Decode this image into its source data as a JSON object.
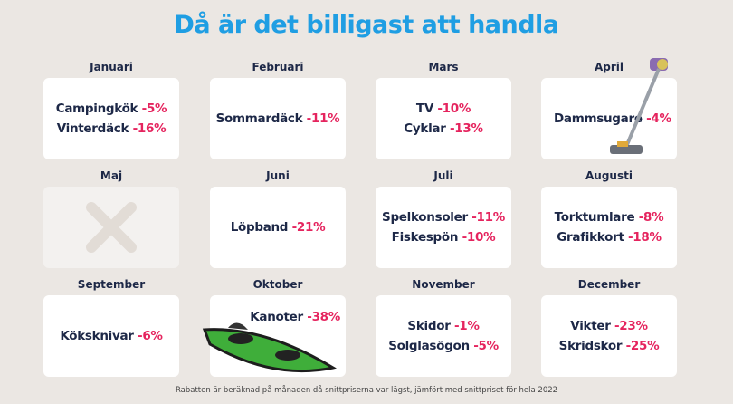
{
  "title": "Då är det billigast att handla",
  "months": [
    {
      "name": "Januari",
      "items": [
        {
          "product": "Campingkök",
          "discount": "-5%"
        },
        {
          "product": "Vinterdäck",
          "discount": "-16%"
        }
      ]
    },
    {
      "name": "Februari",
      "items": [
        {
          "product": "Sommardäck",
          "discount": "-11%"
        }
      ]
    },
    {
      "name": "Mars",
      "items": [
        {
          "product": "TV",
          "discount": "-10%"
        },
        {
          "product": "Cyklar",
          "discount": "-13%"
        }
      ]
    },
    {
      "name": "April",
      "items": [
        {
          "product": "Dammsugare",
          "discount": "-4%"
        }
      ]
    },
    {
      "name": "Maj",
      "items": []
    },
    {
      "name": "Juni",
      "items": [
        {
          "product": "Löpband",
          "discount": "-21%"
        }
      ]
    },
    {
      "name": "Juli",
      "items": [
        {
          "product": "Spelkonsoler",
          "discount": "-11%"
        },
        {
          "product": "Fiskespön",
          "discount": "-10%"
        }
      ]
    },
    {
      "name": "Augusti",
      "items": [
        {
          "product": "Torktumlare",
          "discount": "-8%"
        },
        {
          "product": "Grafikkort",
          "discount": "-18%"
        }
      ]
    },
    {
      "name": "September",
      "items": [
        {
          "product": "Köksknivar",
          "discount": "-6%"
        }
      ]
    },
    {
      "name": "Oktober",
      "items": [
        {
          "product": "Kanoter",
          "discount": "-38%"
        }
      ]
    },
    {
      "name": "November",
      "items": [
        {
          "product": "Skidor",
          "discount": "-1%"
        },
        {
          "product": "Solglasögon",
          "discount": "-5%"
        }
      ]
    },
    {
      "name": "December",
      "items": [
        {
          "product": "Vikter",
          "discount": "-23%"
        },
        {
          "product": "Skridskor",
          "discount": "-25%"
        }
      ]
    }
  ],
  "footnote": "Rabatten är beräknad på månaden då snittpriserna var lägst, jämfört med snittpriset för hela 2022"
}
